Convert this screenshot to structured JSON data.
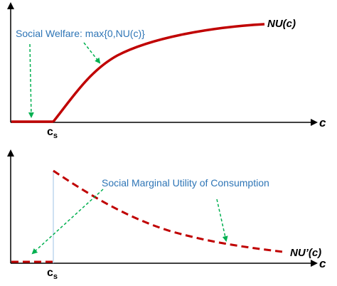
{
  "top_panel": {
    "curve_label": "NU(c)",
    "x_axis_letter": "c",
    "threshold_label": "c",
    "threshold_subscript": "s",
    "annotation": "Social Welfare: max{0,NU(c)}",
    "annotation_color": "#2e75b6",
    "curve_color": "#c00000",
    "arrow_color": "#00b050"
  },
  "bottom_panel": {
    "curve_label": "NU’(c)",
    "x_axis_letter": "c",
    "threshold_label": "c",
    "threshold_subscript": "s",
    "annotation": "Social Marginal Utility of Consumption",
    "annotation_color": "#2e75b6",
    "curve_color": "#c00000",
    "arrow_color": "#00b050"
  }
}
